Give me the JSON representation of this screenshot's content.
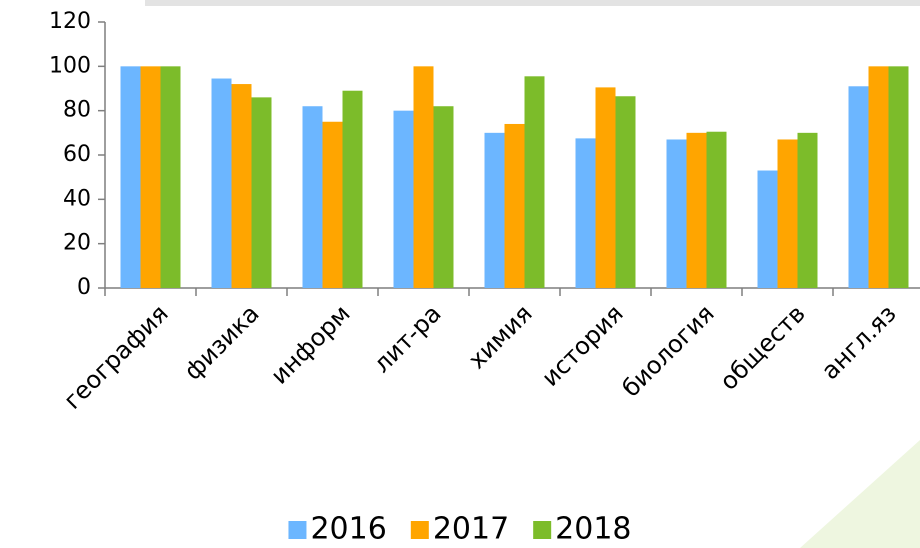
{
  "chart_data": {
    "type": "bar",
    "categories": [
      "география",
      "физика",
      "информ",
      "лит-ра",
      "химия",
      "история",
      "биология",
      "обществ",
      "англ.яз"
    ],
    "series": [
      {
        "name": "2016",
        "color": "#6cb6ff",
        "values": [
          100,
          94.5,
          82,
          80,
          70,
          67.5,
          67,
          53,
          91
        ]
      },
      {
        "name": "2017",
        "color": "#ffa500",
        "values": [
          100,
          92,
          75,
          100,
          74,
          90.5,
          70,
          67,
          100
        ]
      },
      {
        "name": "2018",
        "color": "#7cbc2a",
        "values": [
          100,
          86,
          89,
          82,
          95.5,
          86.5,
          70.5,
          70,
          100
        ]
      }
    ],
    "ylim": [
      0,
      120
    ],
    "yticks": [
      0,
      20,
      40,
      60,
      80,
      100,
      120
    ],
    "grid": false,
    "legend": "bottom"
  }
}
